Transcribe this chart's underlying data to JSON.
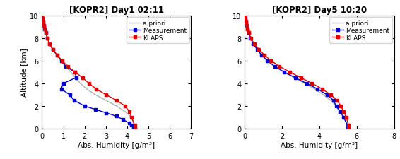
{
  "title1": "[KOPR2] Day1 02:11",
  "title2": "[KOPR2] Day5 10:20",
  "xlabel": "Abs. Humidity [g/m³]",
  "ylabel": "Altitude [km]",
  "xlim1": [
    0,
    7
  ],
  "xlim2": [
    0,
    8
  ],
  "ylim": [
    0,
    10
  ],
  "xticks1": [
    0,
    1,
    2,
    3,
    4,
    5,
    6,
    7
  ],
  "xticks2": [
    0,
    2,
    4,
    6,
    8
  ],
  "yticks": [
    0,
    2,
    4,
    6,
    8,
    10
  ],
  "plot1": {
    "apriori_x": [
      0.0,
      0.02,
      0.05,
      0.08,
      0.12,
      0.18,
      0.25,
      0.35,
      0.5,
      0.7,
      0.9,
      1.1,
      1.35,
      1.55,
      1.8,
      2.1,
      2.5,
      3.0,
      3.5,
      3.9,
      4.2,
      4.35,
      4.35
    ],
    "apriori_y": [
      10.0,
      9.7,
      9.4,
      9.1,
      8.8,
      8.5,
      8.0,
      7.5,
      7.0,
      6.5,
      6.0,
      5.5,
      5.0,
      4.5,
      4.0,
      3.5,
      3.0,
      2.5,
      2.0,
      1.5,
      1.0,
      0.3,
      0.0
    ],
    "measurement_x": [
      0.0,
      0.02,
      0.05,
      0.08,
      0.12,
      0.18,
      0.25,
      0.35,
      0.5,
      0.7,
      0.9,
      1.1,
      1.55,
      1.6,
      1.0,
      0.9,
      1.3,
      1.5,
      2.0,
      2.5,
      3.0,
      3.5,
      3.8,
      4.1,
      4.2,
      4.3,
      4.35
    ],
    "measurement_y": [
      10.0,
      9.7,
      9.4,
      9.1,
      8.8,
      8.5,
      8.0,
      7.5,
      7.0,
      6.5,
      6.0,
      5.5,
      5.0,
      4.5,
      4.0,
      3.5,
      3.0,
      2.5,
      2.0,
      1.7,
      1.4,
      1.1,
      0.8,
      0.5,
      0.3,
      0.1,
      0.0
    ],
    "klaps_x": [
      0.0,
      0.02,
      0.05,
      0.08,
      0.12,
      0.18,
      0.25,
      0.35,
      0.5,
      0.7,
      0.95,
      1.2,
      1.55,
      1.9,
      2.2,
      2.55,
      3.0,
      3.5,
      3.9,
      4.1,
      4.2,
      4.35,
      4.35
    ],
    "klaps_y": [
      10.0,
      9.7,
      9.4,
      9.1,
      8.8,
      8.5,
      8.0,
      7.5,
      7.0,
      6.5,
      6.0,
      5.5,
      5.0,
      4.5,
      4.0,
      3.5,
      3.0,
      2.5,
      2.0,
      1.5,
      1.0,
      0.3,
      0.0
    ]
  },
  "plot2": {
    "apriori_x": [
      0.0,
      0.02,
      0.05,
      0.08,
      0.13,
      0.2,
      0.3,
      0.45,
      0.65,
      0.9,
      1.2,
      1.6,
      2.1,
      2.65,
      3.2,
      3.75,
      4.2,
      4.6,
      4.9,
      5.15,
      5.35,
      5.5,
      5.5
    ],
    "apriori_y": [
      10.0,
      9.7,
      9.4,
      9.1,
      8.8,
      8.5,
      8.0,
      7.5,
      7.0,
      6.5,
      6.0,
      5.5,
      5.0,
      4.5,
      4.0,
      3.5,
      3.0,
      2.5,
      2.0,
      1.5,
      1.0,
      0.3,
      0.0
    ],
    "measurement_x": [
      0.0,
      0.02,
      0.05,
      0.08,
      0.13,
      0.2,
      0.3,
      0.45,
      0.65,
      0.9,
      1.2,
      1.6,
      2.1,
      2.7,
      3.3,
      3.9,
      4.4,
      4.75,
      4.9,
      5.1,
      5.3,
      5.5,
      5.5
    ],
    "measurement_y": [
      10.0,
      9.7,
      9.4,
      9.1,
      8.8,
      8.5,
      8.0,
      7.5,
      7.0,
      6.5,
      6.0,
      5.5,
      5.0,
      4.5,
      4.0,
      3.5,
      3.0,
      2.5,
      2.0,
      1.5,
      1.0,
      0.3,
      0.0
    ],
    "klaps_x": [
      0.0,
      0.02,
      0.05,
      0.08,
      0.13,
      0.2,
      0.32,
      0.5,
      0.75,
      1.05,
      1.4,
      1.85,
      2.4,
      3.0,
      3.6,
      4.15,
      4.6,
      4.95,
      5.15,
      5.3,
      5.45,
      5.55,
      5.55
    ],
    "klaps_y": [
      10.0,
      9.7,
      9.4,
      9.1,
      8.8,
      8.5,
      8.0,
      7.5,
      7.0,
      6.5,
      6.0,
      5.5,
      5.0,
      4.5,
      4.0,
      3.5,
      3.0,
      2.5,
      2.0,
      1.5,
      1.0,
      0.3,
      0.0
    ]
  },
  "color_apriori": "#b0b0b0",
  "color_measurement": "#0000cc",
  "color_klaps": "#dd0000",
  "marker": "s",
  "markersize": 2.5,
  "linewidth": 1.0,
  "title_fontsize": 8.5,
  "label_fontsize": 7.5,
  "tick_fontsize": 7,
  "legend_fontsize": 6.5
}
